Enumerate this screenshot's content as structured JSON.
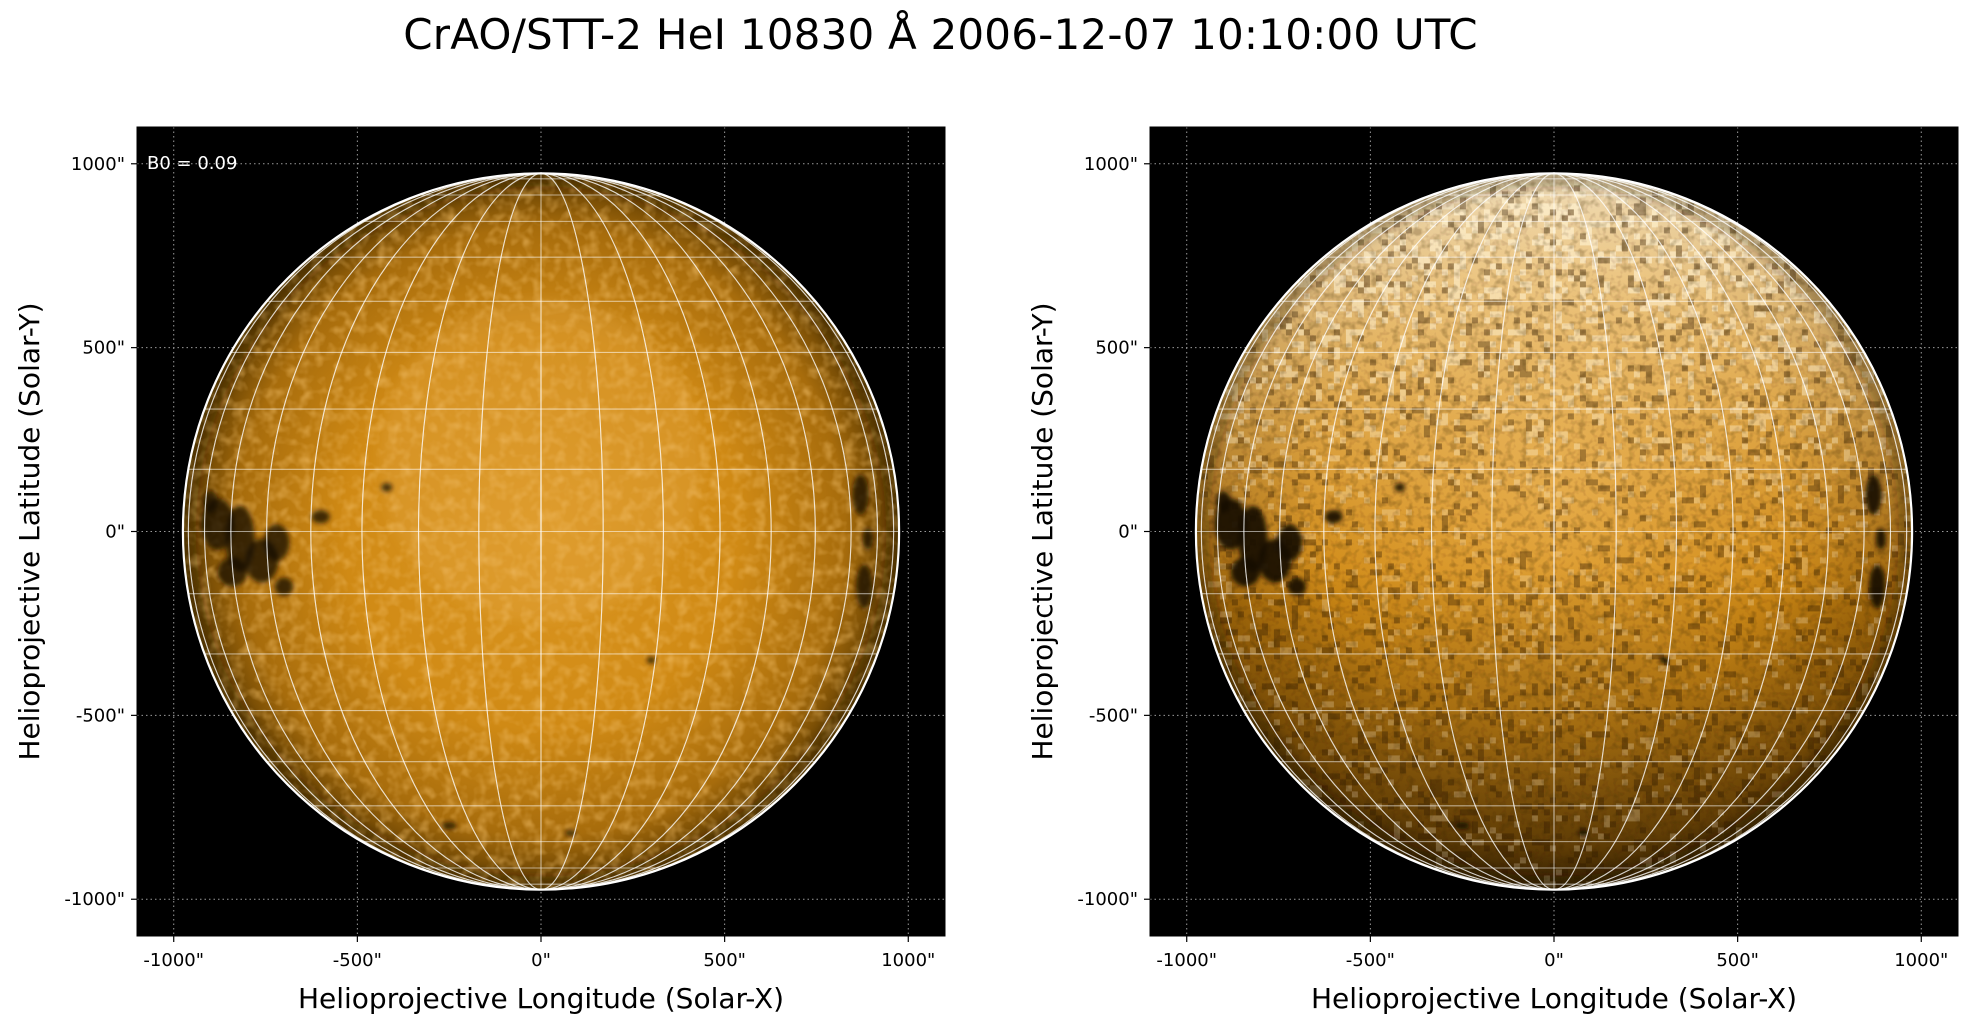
{
  "figure": {
    "title": "CrAO/STT-2 HeI 10830 Å 2006-12-07 10:10:00 UTC"
  },
  "panels": [
    {
      "id": "left",
      "variant": "smooth",
      "xlabel": "Helioprojective Longitude (Solar-X)",
      "ylabel": "Helioprojective Latitude (Solar-Y)",
      "annotation": "B0 = 0.09",
      "xticks": [
        "-1000\"",
        "-500\"",
        "0\"",
        "500\"",
        "1000\""
      ],
      "yticks": [
        "1000\"",
        "500\"",
        "0\"",
        "-500\"",
        "-1000\""
      ]
    },
    {
      "id": "right",
      "variant": "enhanced",
      "xlabel": "Helioprojective Longitude (Solar-X)",
      "ylabel": "Helioprojective Latitude (Solar-Y)",
      "annotation": "",
      "xticks": [
        "-1000\"",
        "-500\"",
        "0\"",
        "500\"",
        "1000\""
      ],
      "yticks": [
        "1000\"",
        "500\"",
        "0\"",
        "-500\"",
        "-1000\""
      ]
    }
  ],
  "axes": {
    "xlim": [
      -1100,
      1100
    ],
    "ylim": [
      -1100,
      1100
    ],
    "tick_values": [
      -1000,
      -500,
      0,
      500,
      1000
    ],
    "solar_radius_arcsec": 975,
    "grid_style": "dotted"
  },
  "colors": {
    "background": "#000000",
    "disk_center": "#d8901a",
    "disk_limb": "#6a4300",
    "grid_lines": "#ffffff",
    "limb_circle": "#ffffff",
    "colormap": "irradiance-orange"
  }
}
